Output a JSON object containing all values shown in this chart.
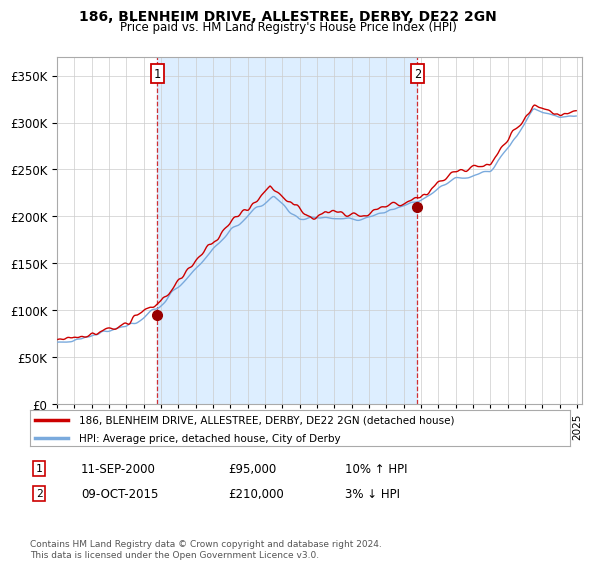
{
  "title": "186, BLENHEIM DRIVE, ALLESTREE, DERBY, DE22 2GN",
  "subtitle": "Price paid vs. HM Land Registry's House Price Index (HPI)",
  "ylim": [
    0,
    370000
  ],
  "yticks": [
    0,
    50000,
    100000,
    150000,
    200000,
    250000,
    300000,
    350000
  ],
  "legend_line1": "186, BLENHEIM DRIVE, ALLESTREE, DERBY, DE22 2GN (detached house)",
  "legend_line2": "HPI: Average price, detached house, City of Derby",
  "annotation1_label": "1",
  "annotation1_date": "11-SEP-2000",
  "annotation1_price": "£95,000",
  "annotation1_hpi": "10% ↑ HPI",
  "annotation2_label": "2",
  "annotation2_date": "09-OCT-2015",
  "annotation2_price": "£210,000",
  "annotation2_hpi": "3% ↓ HPI",
  "footer": "Contains HM Land Registry data © Crown copyright and database right 2024.\nThis data is licensed under the Open Government Licence v3.0.",
  "line1_color": "#cc0000",
  "line2_color": "#7aaadd",
  "shade_color": "#ddeeff",
  "marker_color": "#990000",
  "background_color": "#ffffff",
  "grid_color": "#cccccc",
  "sale1_x": 2000.79,
  "sale1_y": 95000,
  "sale2_x": 2015.79,
  "sale2_y": 210000,
  "xlim_left": 1995,
  "xlim_right": 2025.3
}
